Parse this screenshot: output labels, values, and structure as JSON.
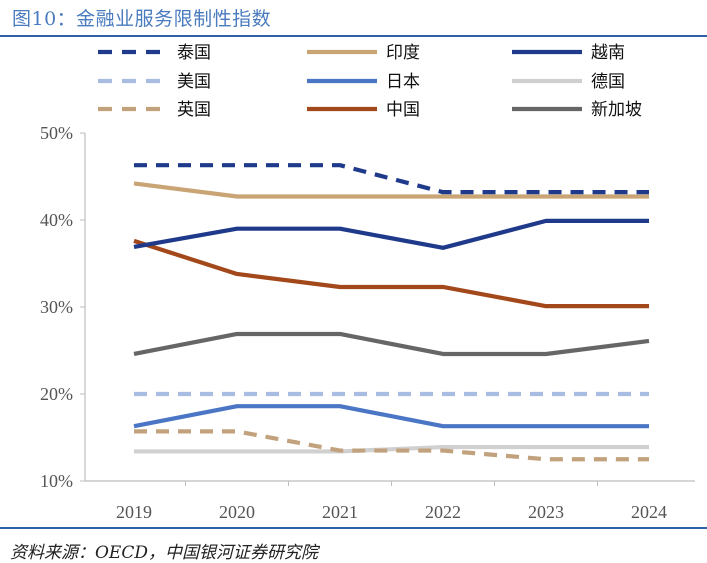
{
  "header": {
    "title": "图10：金融业服务限制性指数"
  },
  "footer": {
    "source": "资料来源：OECD，中国银河证券研究院"
  },
  "chart_data": {
    "type": "line",
    "title": "图10：金融业服务限制性指数",
    "xlabel": "",
    "ylabel": "",
    "x": [
      "2019",
      "2020",
      "2021",
      "2022",
      "2023",
      "2024"
    ],
    "ylim": [
      10,
      50
    ],
    "yticks": [
      10,
      20,
      30,
      40,
      50
    ],
    "ytick_labels": [
      "10%",
      "20%",
      "30%",
      "40%",
      "50%"
    ],
    "grid": false,
    "legend_position": "top",
    "series": [
      {
        "name": "泰国",
        "values": [
          46.3,
          46.3,
          46.3,
          43.2,
          43.2,
          43.2
        ],
        "color": "#1f3a8a",
        "style": "dashed"
      },
      {
        "name": "印度",
        "values": [
          44.2,
          42.7,
          42.7,
          42.7,
          42.7,
          42.7
        ],
        "color": "#c9a475",
        "style": "solid"
      },
      {
        "name": "越南",
        "values": [
          36.9,
          39.0,
          39.0,
          36.8,
          39.9,
          39.9
        ],
        "color": "#1f3a8a",
        "style": "solid"
      },
      {
        "name": "美国",
        "values": [
          20.0,
          20.0,
          20.0,
          20.0,
          20.0,
          20.0
        ],
        "color": "#a9bde3",
        "style": "dashed"
      },
      {
        "name": "日本",
        "values": [
          16.3,
          18.6,
          18.6,
          16.3,
          16.3,
          16.3
        ],
        "color": "#4a76c5",
        "style": "solid"
      },
      {
        "name": "德国",
        "values": [
          13.4,
          13.4,
          13.4,
          13.9,
          13.9,
          13.9
        ],
        "color": "#d0d0d0",
        "style": "solid"
      },
      {
        "name": "英国",
        "values": [
          15.7,
          15.7,
          13.5,
          13.5,
          12.5,
          12.5
        ],
        "color": "#c2a27c",
        "style": "dashed"
      },
      {
        "name": "中国",
        "values": [
          37.6,
          33.8,
          32.3,
          32.3,
          30.1,
          30.1
        ],
        "color": "#a3481a",
        "style": "solid"
      },
      {
        "name": "新加坡",
        "values": [
          24.6,
          26.9,
          26.9,
          24.6,
          24.6,
          26.1
        ],
        "color": "#666666",
        "style": "solid"
      }
    ]
  }
}
